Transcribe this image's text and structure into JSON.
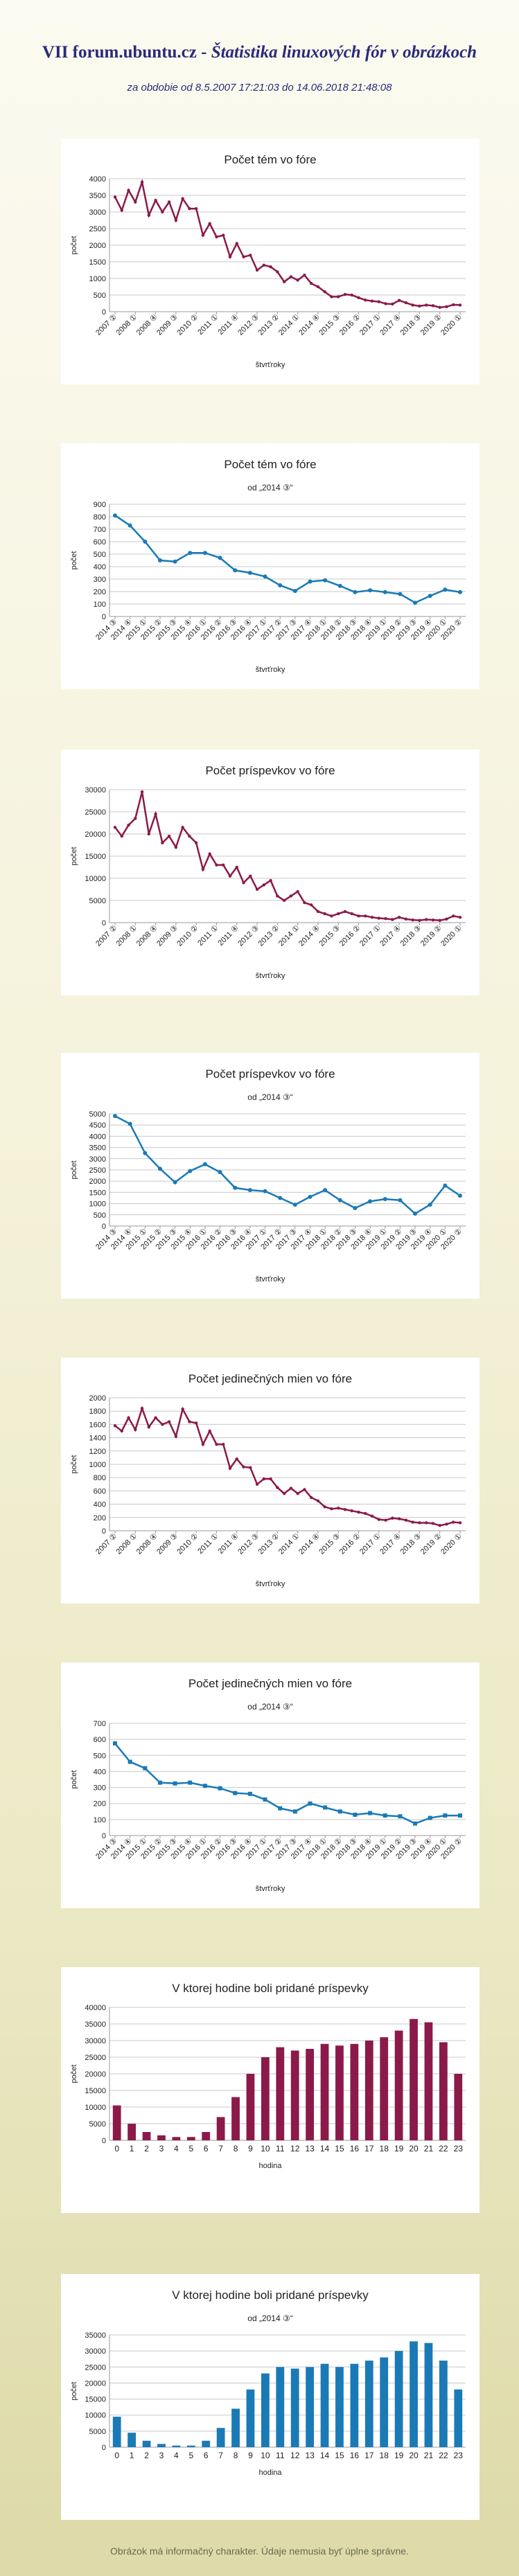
{
  "header": {
    "site": "VII forum.ubuntu.cz",
    "separator": " - ",
    "subtitle_italic": "Štatistika linuxových fór v obrázkoch",
    "period": "za obdobie od 8.5.2007 17:21:03 do 14.06.2018 21:48:08"
  },
  "footer": {
    "note": "Obrázok má informačný charakter. Údaje nemusia byť úplne správne."
  },
  "colors": {
    "maroon": "#8b1a4a",
    "blue": "#1a7ab5",
    "grid": "#c8c8c8",
    "text": "#222222"
  },
  "chart_data": [
    {
      "type": "line",
      "title": "Počet tém vo fóre",
      "subtitle": "",
      "xlabel": "štvrťroky",
      "ylabel": "počet",
      "ylim": [
        0,
        4000
      ],
      "yticks": [
        0,
        500,
        1000,
        1500,
        2000,
        2500,
        3000,
        3500,
        4000
      ],
      "color": "maroon",
      "marker": "circle",
      "xticks": [
        "2007 ②",
        "2008 ①",
        "2008 ④",
        "2009 ③",
        "2010 ②",
        "2011 ①",
        "2011 ④",
        "2012 ③",
        "2013 ②",
        "2014 ①",
        "2014 ④",
        "2015 ③",
        "2016 ②",
        "2017 ①",
        "2017 ④",
        "2018 ③",
        "2019 ②",
        "2020 ①"
      ],
      "values": [
        3450,
        3050,
        3650,
        3300,
        3900,
        2900,
        3350,
        3000,
        3300,
        2750,
        3400,
        3100,
        3100,
        2300,
        2650,
        2250,
        2300,
        1650,
        2050,
        1650,
        1700,
        1250,
        1400,
        1350,
        1200,
        900,
        1050,
        950,
        1100,
        850,
        750,
        600,
        450,
        450,
        520,
        500,
        420,
        350,
        320,
        300,
        240,
        230,
        340,
        270,
        200,
        170,
        200,
        180,
        130,
        150,
        210,
        200
      ]
    },
    {
      "type": "line",
      "title": "Počet tém vo fóre",
      "subtitle": "od „2014 ③“",
      "xlabel": "štvrťroky",
      "ylabel": "počet",
      "ylim": [
        0,
        900
      ],
      "yticks": [
        0,
        100,
        200,
        300,
        400,
        500,
        600,
        700,
        800,
        900
      ],
      "color": "blue",
      "marker": "circle",
      "xticks": [
        "2014 ③",
        "2014 ④",
        "2015 ①",
        "2015 ②",
        "2015 ③",
        "2015 ④",
        "2016 ①",
        "2016 ②",
        "2016 ③",
        "2016 ④",
        "2017 ①",
        "2017 ②",
        "2017 ③",
        "2017 ④",
        "2018 ①",
        "2018 ②",
        "2018 ③",
        "2018 ④",
        "2019 ①",
        "2019 ②",
        "2019 ③",
        "2019 ④",
        "2020 ①",
        "2020 ②"
      ],
      "values": [
        810,
        730,
        600,
        450,
        440,
        510,
        510,
        470,
        370,
        350,
        320,
        250,
        205,
        280,
        290,
        245,
        195,
        210,
        195,
        180,
        110,
        165,
        215,
        195
      ]
    },
    {
      "type": "line",
      "title": "Počet príspevkov vo fóre",
      "subtitle": "",
      "xlabel": "štvrťroky",
      "ylabel": "počet",
      "ylim": [
        0,
        30000
      ],
      "yticks": [
        0,
        5000,
        10000,
        15000,
        20000,
        25000,
        30000
      ],
      "color": "maroon",
      "marker": "circle",
      "xticks": [
        "2007 ②",
        "2008 ①",
        "2008 ④",
        "2009 ③",
        "2010 ②",
        "2011 ①",
        "2011 ④",
        "2012 ③",
        "2013 ②",
        "2014 ①",
        "2014 ④",
        "2015 ③",
        "2016 ②",
        "2017 ①",
        "2017 ④",
        "2018 ③",
        "2019 ②",
        "2020 ①"
      ],
      "values": [
        21500,
        19500,
        22000,
        23500,
        29500,
        20000,
        24500,
        18000,
        19500,
        17000,
        21500,
        19500,
        18000,
        12000,
        15500,
        13000,
        13000,
        10500,
        12500,
        9000,
        10500,
        7500,
        8500,
        9500,
        6000,
        5000,
        6000,
        7000,
        4500,
        4000,
        2500,
        2000,
        1500,
        2000,
        2500,
        2000,
        1500,
        1500,
        1200,
        1000,
        900,
        700,
        1200,
        800,
        600,
        500,
        700,
        600,
        500,
        800,
        1500,
        1200
      ]
    },
    {
      "type": "line",
      "title": "Počet príspevkov vo fóre",
      "subtitle": "od „2014 ③“",
      "xlabel": "štvrťroky",
      "ylabel": "počet",
      "ylim": [
        0,
        5000
      ],
      "yticks": [
        0,
        500,
        1000,
        1500,
        2000,
        2500,
        3000,
        3500,
        4000,
        4500,
        5000
      ],
      "color": "blue",
      "marker": "circle",
      "xticks": [
        "2014 ③",
        "2014 ④",
        "2015 ①",
        "2015 ②",
        "2015 ③",
        "2015 ④",
        "2016 ①",
        "2016 ②",
        "2016 ③",
        "2016 ④",
        "2017 ①",
        "2017 ②",
        "2017 ③",
        "2017 ④",
        "2018 ①",
        "2018 ②",
        "2018 ③",
        "2018 ④",
        "2019 ①",
        "2019 ②",
        "2019 ③",
        "2019 ④",
        "2020 ①",
        "2020 ②"
      ],
      "values": [
        4900,
        4550,
        3250,
        2550,
        1950,
        2450,
        2750,
        2400,
        1700,
        1600,
        1550,
        1250,
        950,
        1300,
        1600,
        1150,
        800,
        1100,
        1200,
        1150,
        550,
        950,
        1800,
        1350
      ]
    },
    {
      "type": "line",
      "title": "Počet jedinečných mien vo fóre",
      "subtitle": "",
      "xlabel": "štvrťroky",
      "ylabel": "počet",
      "ylim": [
        0,
        2000
      ],
      "yticks": [
        0,
        200,
        400,
        600,
        800,
        1000,
        1200,
        1400,
        1600,
        1800,
        2000
      ],
      "color": "maroon",
      "marker": "circle",
      "xticks": [
        "2007 ②",
        "2008 ①",
        "2008 ④",
        "2009 ③",
        "2010 ②",
        "2011 ①",
        "2011 ④",
        "2012 ③",
        "2013 ②",
        "2014 ①",
        "2014 ④",
        "2015 ③",
        "2016 ②",
        "2017 ①",
        "2017 ④",
        "2018 ③",
        "2019 ②",
        "2020 ①"
      ],
      "values": [
        1580,
        1500,
        1700,
        1520,
        1840,
        1560,
        1700,
        1600,
        1640,
        1420,
        1830,
        1640,
        1620,
        1300,
        1500,
        1300,
        1300,
        940,
        1080,
        960,
        950,
        700,
        780,
        780,
        650,
        560,
        640,
        560,
        620,
        500,
        450,
        360,
        330,
        340,
        320,
        300,
        280,
        260,
        220,
        170,
        160,
        190,
        180,
        160,
        130,
        120,
        120,
        110,
        80,
        100,
        130,
        120
      ]
    },
    {
      "type": "line",
      "title": "Počet jedinečných mien vo fóre",
      "subtitle": "od „2014 ③“",
      "xlabel": "štvrťroky",
      "ylabel": "počet",
      "ylim": [
        0,
        700
      ],
      "yticks": [
        0,
        100,
        200,
        300,
        400,
        500,
        600,
        700
      ],
      "color": "blue",
      "marker": "square",
      "xticks": [
        "2014 ③",
        "2014 ④",
        "2015 ①",
        "2015 ②",
        "2015 ③",
        "2015 ④",
        "2016 ①",
        "2016 ②",
        "2016 ③",
        "2016 ④",
        "2017 ①",
        "2017 ②",
        "2017 ③",
        "2017 ④",
        "2018 ①",
        "2018 ②",
        "2018 ③",
        "2018 ④",
        "2019 ①",
        "2019 ②",
        "2019 ③",
        "2019 ④",
        "2020 ①",
        "2020 ②"
      ],
      "values": [
        575,
        460,
        420,
        330,
        325,
        330,
        310,
        295,
        265,
        260,
        225,
        170,
        150,
        200,
        175,
        150,
        130,
        140,
        125,
        120,
        75,
        110,
        125,
        125
      ]
    },
    {
      "type": "bar",
      "title": "V ktorej hodine boli pridané príspevky",
      "subtitle": "",
      "xlabel": "hodina",
      "ylabel": "počet",
      "ylim": [
        0,
        40000
      ],
      "yticks": [
        0,
        5000,
        10000,
        15000,
        20000,
        25000,
        30000,
        35000,
        40000
      ],
      "color": "maroon",
      "categories": [
        "0",
        "1",
        "2",
        "3",
        "4",
        "5",
        "6",
        "7",
        "8",
        "9",
        "10",
        "11",
        "12",
        "13",
        "14",
        "15",
        "16",
        "17",
        "18",
        "19",
        "20",
        "21",
        "22",
        "23"
      ],
      "values": [
        10500,
        5000,
        2500,
        1500,
        1000,
        1000,
        2500,
        7000,
        13000,
        20000,
        25000,
        28000,
        27000,
        27500,
        29000,
        28500,
        29000,
        30000,
        31000,
        33000,
        36500,
        35500,
        29500,
        20000
      ]
    },
    {
      "type": "bar",
      "title": "V ktorej hodine boli pridané príspevky",
      "subtitle": "od „2014 ③“",
      "xlabel": "hodina",
      "ylabel": "počet",
      "ylim": [
        0,
        35000
      ],
      "yticks": [
        0,
        5000,
        10000,
        15000,
        20000,
        25000,
        30000,
        35000
      ],
      "color": "blue",
      "categories": [
        "0",
        "1",
        "2",
        "3",
        "4",
        "5",
        "6",
        "7",
        "8",
        "9",
        "10",
        "11",
        "12",
        "13",
        "14",
        "15",
        "16",
        "17",
        "18",
        "19",
        "20",
        "21",
        "22",
        "23"
      ],
      "values": [
        9500,
        4500,
        2000,
        1000,
        500,
        500,
        2000,
        6000,
        12000,
        18000,
        23000,
        25000,
        24500,
        25000,
        26000,
        25000,
        26000,
        27000,
        28000,
        30000,
        33000,
        32500,
        27000,
        18000
      ]
    }
  ]
}
